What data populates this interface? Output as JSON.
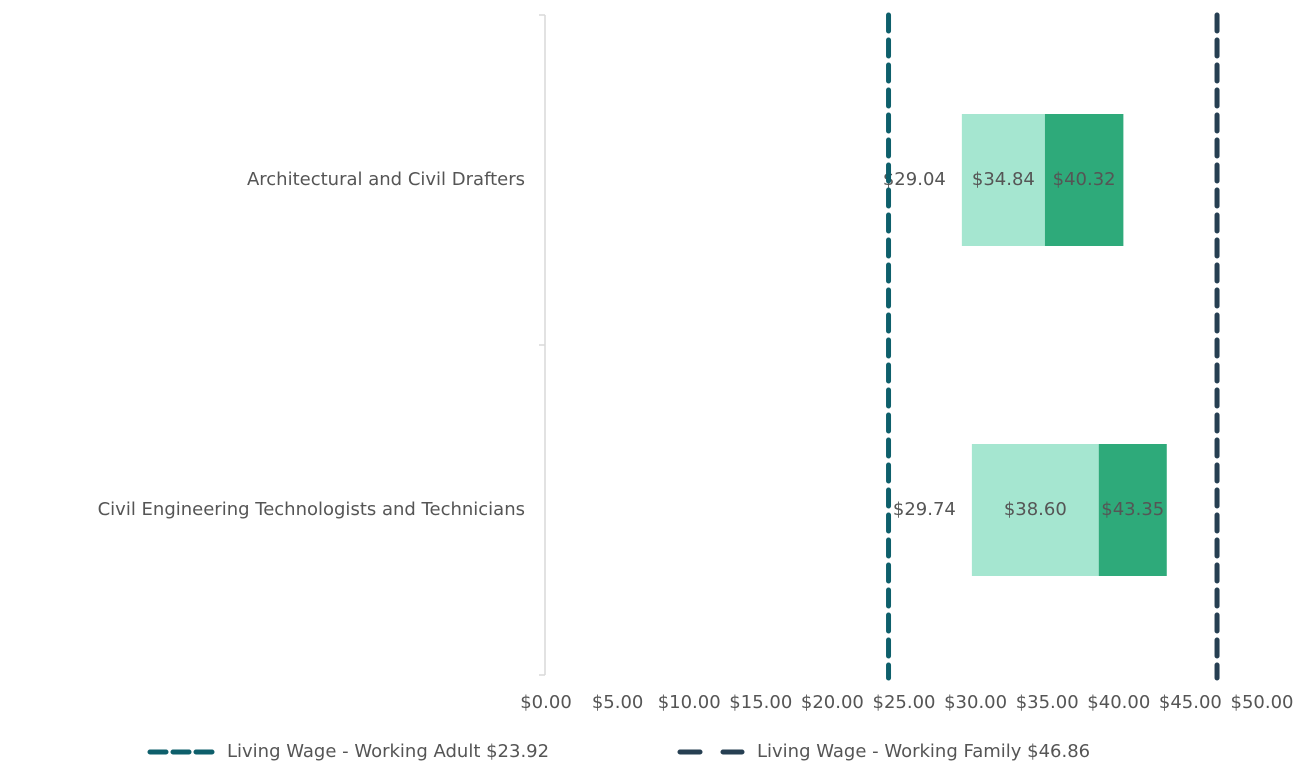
{
  "chart_data": {
    "type": "floating_bar",
    "categories": [
      "Architectural and Civil Drafters",
      "Civil Engineering Technologists and Technicians"
    ],
    "series": [
      {
        "values": [
          29.04,
          29.74
        ],
        "value_labels": [
          "$29.04",
          "$29.74"
        ]
      },
      {
        "color": "#a5e6d0",
        "values": [
          34.84,
          38.6
        ],
        "value_labels": [
          "$34.84",
          "$38.60"
        ]
      },
      {
        "color": "#2eaa7a",
        "values": [
          40.32,
          43.35
        ],
        "value_labels": [
          "$40.32",
          "$43.35"
        ]
      }
    ],
    "reference_lines": [
      {
        "label": "Living Wage - Working Adult $23.92",
        "value": 23.92,
        "color": "#0e5f6b"
      },
      {
        "label": "Living Wage - Working Family  $46.86",
        "value": 46.86,
        "color": "#263f52"
      }
    ],
    "xlim": [
      0,
      50
    ],
    "xticks": [
      {
        "value": 0,
        "label": "$0.00"
      },
      {
        "value": 5,
        "label": "$5.00"
      },
      {
        "value": 10,
        "label": "$10.00"
      },
      {
        "value": 15,
        "label": "$15.00"
      },
      {
        "value": 20,
        "label": "$20.00"
      },
      {
        "value": 25,
        "label": "$25.00"
      },
      {
        "value": 30,
        "label": "$30.00"
      },
      {
        "value": 35,
        "label": "$35.00"
      },
      {
        "value": 40,
        "label": "$40.00"
      },
      {
        "value": 45,
        "label": "$45.00"
      },
      {
        "value": 50,
        "label": "$50.00"
      }
    ],
    "legend": "bottom"
  }
}
